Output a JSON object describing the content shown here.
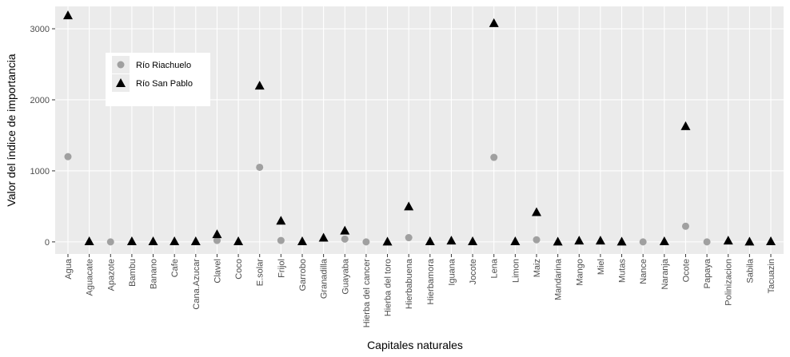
{
  "chart_data": {
    "type": "scatter",
    "x_label": "Capitales naturales",
    "y_label": "Valor del índice de importancia",
    "categories": [
      "Agua",
      "Aguacate",
      "Apazote",
      "Bambu",
      "Banano",
      "Cafe",
      "Cana.Azucar",
      "Clavel",
      "Coco",
      "E.solar",
      "Frijol",
      "Garrobo",
      "Granadilla",
      "Guayaba",
      "Hierba del cancer",
      "Hierba del toro",
      "Hierbabuena",
      "Hierbamora",
      "Iguana",
      "Jocote",
      "Lena",
      "Limon",
      "Maiz",
      "Mandarina",
      "Mango",
      "Miel",
      "Mutas",
      "Nance",
      "Naranja",
      "Ocote",
      "Papaya",
      "Polinizacion",
      "Sabila",
      "Tacuazin"
    ],
    "series": [
      {
        "name": "Río Riachuelo",
        "color": "#a0a0a0",
        "marker": "circle",
        "values": [
          1200,
          null,
          0,
          null,
          null,
          null,
          null,
          20,
          null,
          1050,
          20,
          null,
          null,
          40,
          0,
          null,
          60,
          null,
          null,
          null,
          1190,
          null,
          30,
          null,
          null,
          null,
          null,
          0,
          null,
          220,
          0,
          null,
          null,
          null
        ]
      },
      {
        "name": "Río San Pablo",
        "color": "#000000",
        "marker": "triangle",
        "values": [
          3190,
          10,
          null,
          10,
          10,
          10,
          10,
          110,
          10,
          2200,
          300,
          10,
          60,
          160,
          null,
          5,
          500,
          10,
          20,
          10,
          3080,
          10,
          420,
          5,
          20,
          20,
          5,
          null,
          10,
          1630,
          null,
          20,
          5,
          10
        ]
      }
    ],
    "ylim": [
      -170,
      3315
    ],
    "yticks": [
      0,
      1000,
      2000,
      3000
    ],
    "grid": true,
    "legend_position": "inside-top-left"
  }
}
